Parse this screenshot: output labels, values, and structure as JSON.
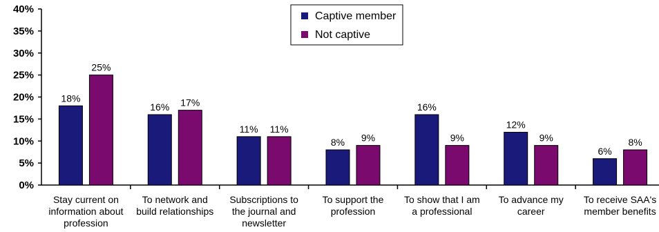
{
  "chart_data": {
    "type": "bar",
    "categories": [
      [
        "Stay current on",
        "information about",
        "profession"
      ],
      [
        "To network and",
        "build relationships"
      ],
      [
        "Subscriptions to",
        "the journal and",
        "newsletter"
      ],
      [
        "To support the",
        "profession"
      ],
      [
        "To show that I am",
        "a professional"
      ],
      [
        "To advance my",
        "career"
      ],
      [
        "To receive SAA's",
        "member benefits"
      ]
    ],
    "series": [
      {
        "name": "Captive member",
        "values": [
          18,
          16,
          11,
          8,
          16,
          12,
          6
        ],
        "labels": [
          "18%",
          "16%",
          "11%",
          "8%",
          "16%",
          "12%",
          "6%"
        ]
      },
      {
        "name": "Not captive",
        "values": [
          25,
          17,
          11,
          9,
          9,
          9,
          8
        ],
        "labels": [
          "25%",
          "17%",
          "11%",
          "9%",
          "9%",
          "9%",
          "8%"
        ]
      }
    ],
    "y_ticks": [
      "0%",
      "5%",
      "10%",
      "15%",
      "20%",
      "25%",
      "30%",
      "35%",
      "40%"
    ],
    "ylim": [
      0,
      40
    ],
    "colors": [
      "#1a1a7a",
      "#7a0a6e"
    ],
    "grid": false,
    "legend_position": "top-center"
  }
}
